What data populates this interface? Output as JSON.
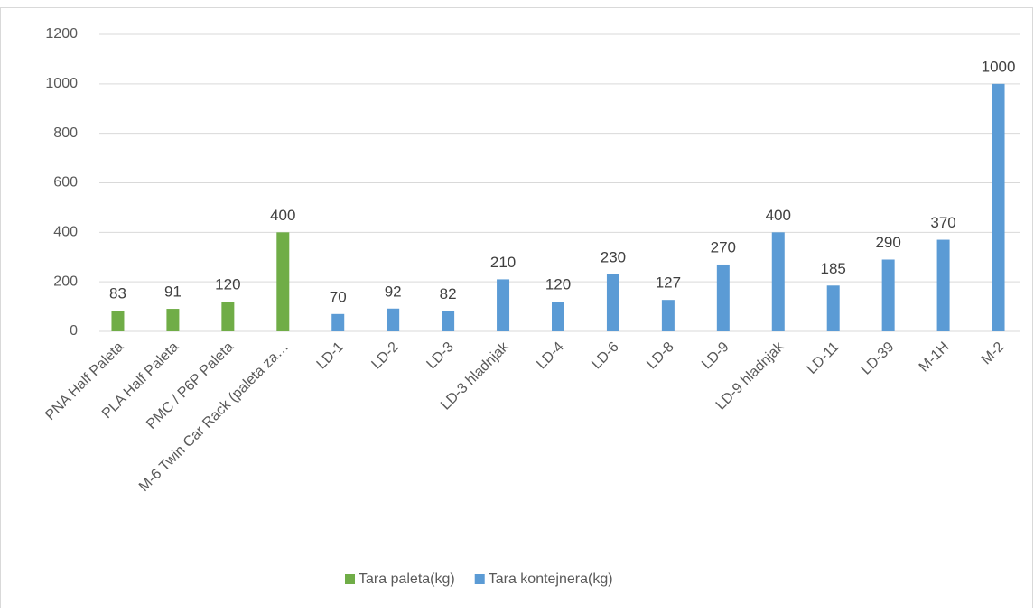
{
  "chart_data": {
    "type": "bar",
    "categories": [
      "PNA Half Paleta",
      "PLA Half Paleta",
      "PMC / P6P Paleta",
      "M-6 Twin Car Rack (paleta za…",
      "LD-1",
      "LD-2",
      "LD-3",
      "LD-3 hladnjak",
      "LD-4",
      "LD-6",
      "LD-8",
      "LD-9",
      "LD-9 hladnjak",
      "LD-11",
      "LD-39",
      "M-1H",
      "M-2"
    ],
    "series": [
      {
        "name": "Tara paleta(kg)",
        "color": "#70ad47",
        "values": [
          83,
          91,
          120,
          400,
          null,
          null,
          null,
          null,
          null,
          null,
          null,
          null,
          null,
          null,
          null,
          null,
          null
        ]
      },
      {
        "name": "Tara kontejnera(kg)",
        "color": "#5b9bd5",
        "values": [
          null,
          null,
          null,
          null,
          70,
          92,
          82,
          210,
          120,
          230,
          127,
          270,
          400,
          185,
          290,
          370,
          1000
        ]
      }
    ],
    "ylim": [
      0,
      1200
    ],
    "yticks": [
      0,
      200,
      400,
      600,
      800,
      1000,
      1200
    ],
    "grid": true,
    "legend": "bottom"
  }
}
